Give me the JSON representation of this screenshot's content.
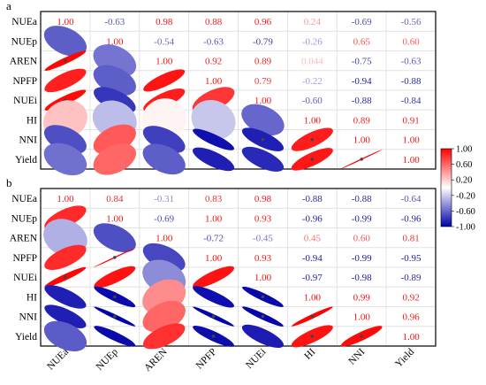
{
  "chart_data": [
    {
      "panel_label": "a",
      "type": "heatmap",
      "variables": [
        "NUEa",
        "NUEp",
        "AREN",
        "NPFP",
        "NUEi",
        "HI",
        "NNI",
        "Yield"
      ],
      "matrix": [
        [
          "1.00",
          "-0.63",
          "0.98",
          "0.88",
          "0.96",
          "0.24",
          "-0.69",
          "-0.56"
        ],
        [
          "-0.63",
          "1.00",
          "-0.54",
          "-0.63",
          "-0.79",
          "-0.26",
          "0.65",
          "0.60"
        ],
        [
          "0.98",
          "-0.54",
          "1.00",
          "0.92",
          "0.89",
          "0.044",
          "-0.75",
          "-0.63"
        ],
        [
          "0.88",
          "-0.63",
          "0.92",
          "1.00",
          "0.79",
          "-0.22",
          "-0.94",
          "-0.88"
        ],
        [
          "0.96",
          "-0.79",
          "0.89",
          "0.79",
          "1.00",
          "-0.60",
          "-0.88",
          "-0.84"
        ],
        [
          "0.24",
          "-0.26",
          "0.044",
          "-0.22",
          "-0.60",
          "1.00",
          "0.89",
          "0.91"
        ],
        [
          "-0.69",
          "0.65",
          "-0.75",
          "-0.94",
          "-0.88",
          "0.89",
          "1.00",
          "1.00"
        ],
        [
          "-0.56",
          "0.60",
          "-0.63",
          "-0.88",
          "-0.84",
          "0.91",
          "1.00",
          "1.00"
        ]
      ],
      "significance": [
        [
          0,
          0,
          0,
          0,
          0,
          0,
          0,
          0
        ],
        [
          0,
          0,
          0,
          0,
          0,
          0,
          0,
          0
        ],
        [
          1,
          0,
          0,
          0,
          0,
          0,
          0,
          0
        ],
        [
          0,
          0,
          0,
          0,
          0,
          0,
          0,
          0
        ],
        [
          1,
          0,
          0,
          0,
          0,
          0,
          0,
          0
        ],
        [
          0,
          0,
          0,
          0,
          0,
          0,
          0,
          0
        ],
        [
          0,
          0,
          0,
          0,
          1,
          1,
          0,
          0
        ],
        [
          0,
          0,
          0,
          0,
          0,
          1,
          1,
          0
        ]
      ]
    },
    {
      "panel_label": "b",
      "type": "heatmap",
      "variables": [
        "NUEa",
        "NUEp",
        "AREN",
        "NPFP",
        "NUEi",
        "HI",
        "NNI",
        "Yield"
      ],
      "matrix": [
        [
          "1.00",
          "0.84",
          "-0.31",
          "0.83",
          "0.98",
          "-0.88",
          "-0.88",
          "-0.64"
        ],
        [
          "0.84",
          "1.00",
          "-0.69",
          "1.00",
          "0.93",
          "-0.96",
          "-0.99",
          "-0.96"
        ],
        [
          "-0.31",
          "-0.69",
          "1.00",
          "-0.72",
          "-0.45",
          "0.45",
          "0.60",
          "0.81"
        ],
        [
          "0.83",
          "1.00",
          "-0.72",
          "1.00",
          "0.93",
          "-0.94",
          "-0.99",
          "-0.95"
        ],
        [
          "0.98",
          "0.93",
          "-0.45",
          "0.93",
          "1.00",
          "-0.97",
          "-0.98",
          "-0.89"
        ],
        [
          "-0.88",
          "-0.96",
          "0.45",
          "-0.94",
          "-0.97",
          "1.00",
          "0.99",
          "0.92"
        ],
        [
          "-0.88",
          "-0.99",
          "0.60",
          "-0.99",
          "-0.98",
          "0.99",
          "1.00",
          "0.96"
        ],
        [
          "-0.64",
          "-0.96",
          "0.81",
          "-0.95",
          "-0.89",
          "0.92",
          "0.96",
          "1.00"
        ]
      ],
      "significance": [
        [
          0,
          0,
          0,
          0,
          0,
          0,
          0,
          0
        ],
        [
          0,
          0,
          0,
          0,
          0,
          0,
          0,
          0
        ],
        [
          0,
          0,
          0,
          0,
          0,
          0,
          0,
          0
        ],
        [
          0,
          1,
          0,
          0,
          0,
          0,
          0,
          0
        ],
        [
          1,
          0,
          0,
          0,
          0,
          0,
          0,
          0
        ],
        [
          0,
          1,
          0,
          0,
          1,
          0,
          0,
          0
        ],
        [
          0,
          1,
          0,
          1,
          1,
          1,
          0,
          0
        ],
        [
          0,
          0,
          0,
          1,
          0,
          1,
          1,
          0
        ]
      ]
    }
  ],
  "colorbar": {
    "ticks": [
      "1.00",
      "0.60",
      "0.20",
      "-0.20",
      "-0.60",
      "-1.00"
    ],
    "range": [
      -1.0,
      1.0
    ],
    "colors": {
      "positive": "#ff0000",
      "neutral": "#ffffff",
      "negative": "#0000aa"
    }
  }
}
